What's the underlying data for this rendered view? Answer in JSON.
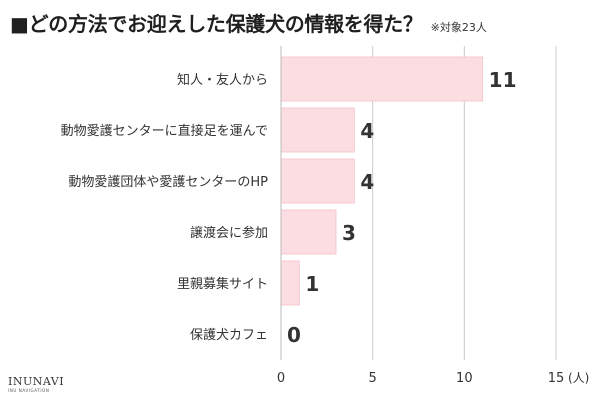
{
  "header": {
    "title": "■どの方法でお迎えした保護犬の情報を得た？",
    "note": "※対象23人"
  },
  "brand": {
    "name": "INUNAVI",
    "sub": "INU NAVIGATION"
  },
  "chart_data": {
    "type": "bar",
    "orientation": "horizontal",
    "categories": [
      "知人・友人から",
      "動物愛護センターに直接足を運んで",
      "動物愛護団体や愛護センターのHP",
      "譲渡会に参加",
      "里親募集サイト",
      "保護犬カフェ"
    ],
    "values": [
      11,
      4,
      4,
      3,
      1,
      0
    ],
    "data_labels": [
      "11",
      "4",
      "4",
      "3",
      "1",
      "0"
    ],
    "x_ticks": [
      0,
      5,
      10,
      15
    ],
    "x_tick_labels": [
      "0",
      "5",
      "10",
      "15"
    ],
    "xlim": [
      0,
      15
    ],
    "x_unit": "(人)",
    "grid": "vertical",
    "bar_color": "#fcdde1",
    "bar_stroke": "#f2c2c9",
    "grid_color": "#cccccc",
    "label_color": "#333333"
  }
}
